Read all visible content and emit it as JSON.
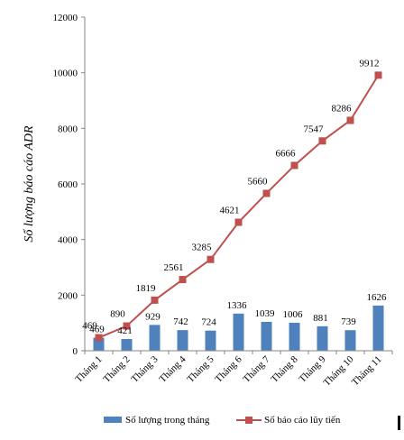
{
  "chart_data": {
    "type": "bar",
    "title": "",
    "xlabel": "",
    "ylabel": "Số lượng báo cáo ADR",
    "ylim": [
      0,
      12000
    ],
    "yticks": [
      0,
      2000,
      4000,
      6000,
      8000,
      10000,
      12000
    ],
    "grid": false,
    "legend_position": "bottom",
    "categories": [
      "Tháng 1",
      "Tháng 2",
      "Tháng 3",
      "Tháng 4",
      "Tháng 5",
      "Tháng 6",
      "Tháng 7",
      "Tháng 8",
      "Tháng 9",
      "Tháng 10",
      "Tháng 11"
    ],
    "series": [
      {
        "name": "Số lượng trong tháng",
        "type": "bar",
        "color": "#4f81bd",
        "values": [
          469,
          421,
          929,
          742,
          724,
          1336,
          1039,
          1006,
          881,
          739,
          1626
        ],
        "labels": [
          "469",
          "421",
          "929",
          "742",
          "724",
          "1336",
          "1039",
          "1006",
          "881",
          "739",
          "1626"
        ]
      },
      {
        "name": "Số báo cáo lũy tiến",
        "type": "line",
        "color": "#c0504d",
        "values": [
          469,
          890,
          1819,
          2561,
          3285,
          4621,
          5660,
          6666,
          7547,
          8286,
          9912
        ],
        "labels": [
          "469",
          "890",
          "1819",
          "2561",
          "3285",
          "4621",
          "5660",
          "6666",
          "7547",
          "8286",
          "9912"
        ]
      }
    ]
  }
}
